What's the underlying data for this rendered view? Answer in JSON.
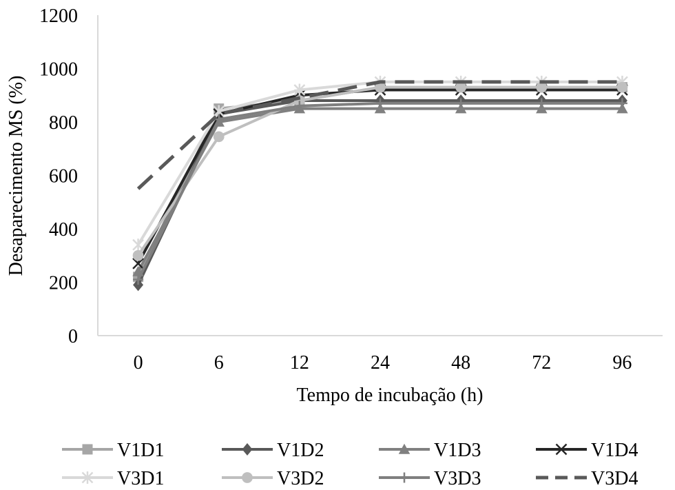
{
  "chart_data": {
    "type": "line",
    "title": "",
    "xlabel": "Tempo de incubação (h)",
    "ylabel": "Desaparecimento MS (%)",
    "categories": [
      "0",
      "6",
      "12",
      "24",
      "48",
      "72",
      "96"
    ],
    "ylim": [
      0,
      1200
    ],
    "yticks": [
      0,
      200,
      400,
      600,
      800,
      1000,
      1200
    ],
    "grid": false,
    "legend_position": "bottom",
    "series": [
      {
        "name": "V1D1",
        "color": "#a6a6a6",
        "marker": "square",
        "dash": "solid",
        "values": [
          220,
          850,
          880,
          930,
          930,
          930,
          930
        ]
      },
      {
        "name": "V1D2",
        "color": "#595959",
        "marker": "diamond",
        "dash": "solid",
        "values": [
          190,
          830,
          880,
          880,
          880,
          880,
          880
        ]
      },
      {
        "name": "V1D3",
        "color": "#808080",
        "marker": "triangle",
        "dash": "solid",
        "values": [
          240,
          800,
          850,
          850,
          850,
          850,
          850
        ]
      },
      {
        "name": "V1D4",
        "color": "#262626",
        "marker": "x",
        "dash": "solid",
        "values": [
          270,
          830,
          900,
          920,
          920,
          920,
          920
        ]
      },
      {
        "name": "V3D1",
        "color": "#d9d9d9",
        "marker": "star",
        "dash": "solid",
        "values": [
          340,
          840,
          920,
          950,
          950,
          950,
          950
        ]
      },
      {
        "name": "V3D2",
        "color": "#bfbfbf",
        "marker": "circle",
        "dash": "solid",
        "values": [
          300,
          745,
          880,
          930,
          930,
          930,
          930
        ]
      },
      {
        "name": "V3D3",
        "color": "#7f7f7f",
        "marker": "plus",
        "dash": "solid",
        "values": [
          210,
          810,
          860,
          870,
          870,
          870,
          870
        ]
      },
      {
        "name": "V3D4",
        "color": "#595959",
        "marker": "none",
        "dash": "dashed",
        "values": [
          550,
          830,
          890,
          950,
          950,
          950,
          950
        ]
      }
    ]
  }
}
